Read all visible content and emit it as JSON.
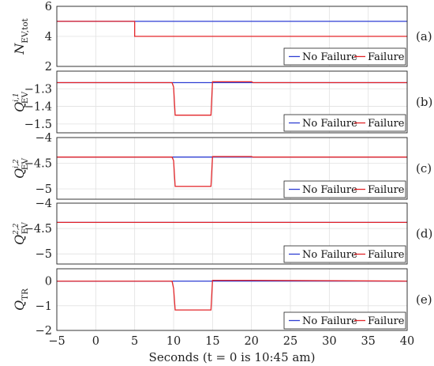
{
  "colors": {
    "no_failure": "#2f3fd3",
    "failure": "#e3262a",
    "grid": "#e1e1e1",
    "axis": "#222222",
    "background": "#ffffff"
  },
  "chart_data": [
    {
      "type": "line",
      "panel_label": "(a)",
      "ylabel": {
        "main": "N",
        "sub": "EV,tot",
        "sup": ""
      },
      "xlim": [
        -5,
        40
      ],
      "ylim": [
        2,
        6
      ],
      "yticks": [
        2,
        4,
        6
      ],
      "ytick_labels": [
        "2",
        "4",
        "6"
      ],
      "grid": true,
      "legend": "bottom-right",
      "series": [
        {
          "name": "No Failure",
          "color": "#2f3fd3",
          "x": [
            -5,
            40
          ],
          "y": [
            5,
            5
          ]
        },
        {
          "name": "Failure",
          "color": "#e3262a",
          "x": [
            -5,
            5,
            5,
            40
          ],
          "y": [
            5,
            5,
            4,
            4
          ]
        }
      ]
    },
    {
      "type": "line",
      "panel_label": "(b)",
      "ylabel": {
        "main": "Q",
        "sub": "EV",
        "sup": "i,1"
      },
      "xlim": [
        -5,
        40
      ],
      "ylim": [
        -1.55,
        -1.2
      ],
      "yticks": [
        -1.3,
        -1.4,
        -1.5
      ],
      "ytick_labels": [
        "−1.3",
        "−1.4",
        "−1.5"
      ],
      "grid": true,
      "legend": "bottom-right",
      "series": [
        {
          "name": "No Failure",
          "color": "#2f3fd3",
          "x": [
            -5,
            40
          ],
          "y": [
            -1.265,
            -1.265
          ]
        },
        {
          "name": "Failure",
          "color": "#e3262a",
          "x": [
            -5,
            9.8,
            10,
            10.2,
            14.8,
            15,
            20,
            20.2,
            40
          ],
          "y": [
            -1.265,
            -1.265,
            -1.29,
            -1.45,
            -1.45,
            -1.26,
            -1.26,
            -1.265,
            -1.265
          ]
        }
      ]
    },
    {
      "type": "line",
      "panel_label": "(c)",
      "ylabel": {
        "main": "Q",
        "sub": "EV",
        "sup": "i,2"
      },
      "xlim": [
        -5,
        40
      ],
      "ylim": [
        -5.2,
        -4
      ],
      "yticks": [
        -4,
        -4.5,
        -5
      ],
      "ytick_labels": [
        "−4",
        "−4.5",
        "−5"
      ],
      "grid": true,
      "legend": "bottom-right",
      "series": [
        {
          "name": "No Failure",
          "color": "#2f3fd3",
          "x": [
            -5,
            40
          ],
          "y": [
            -4.38,
            -4.38
          ]
        },
        {
          "name": "Failure",
          "color": "#e3262a",
          "x": [
            -5,
            9.8,
            10,
            10.2,
            14.8,
            15,
            20,
            20.2,
            40
          ],
          "y": [
            -4.38,
            -4.38,
            -4.45,
            -4.95,
            -4.95,
            -4.37,
            -4.37,
            -4.38,
            -4.38
          ]
        }
      ]
    },
    {
      "type": "line",
      "panel_label": "(d)",
      "ylabel": {
        "main": "Q",
        "sub": "EV",
        "sup": "2,2"
      },
      "xlim": [
        -5,
        40
      ],
      "ylim": [
        -5.2,
        -4
      ],
      "yticks": [
        -4,
        -4.5,
        -5
      ],
      "ytick_labels": [
        "−4",
        "−4.5",
        "−5"
      ],
      "grid": true,
      "legend": "bottom-right",
      "series": [
        {
          "name": "No Failure",
          "color": "#2f3fd3",
          "x": [
            -5,
            40
          ],
          "y": [
            -4.38,
            -4.38
          ]
        },
        {
          "name": "Failure",
          "color": "#e3262a",
          "x": [
            -5,
            40
          ],
          "y": [
            -4.38,
            -4.38
          ]
        }
      ]
    },
    {
      "type": "line",
      "panel_label": "(e)",
      "ylabel": {
        "main": "Q",
        "sub": "TR",
        "sup": ""
      },
      "xlim": [
        -5,
        40
      ],
      "ylim": [
        -2,
        0.5
      ],
      "yticks": [
        0,
        -1,
        -2
      ],
      "ytick_labels": [
        "0",
        "−1",
        "−2"
      ],
      "grid": true,
      "legend": "bottom-right",
      "xticks": [
        -5,
        0,
        5,
        10,
        15,
        20,
        25,
        30,
        35,
        40
      ],
      "xtick_labels": [
        "−5",
        "0",
        "5",
        "10",
        "15",
        "20",
        "25",
        "30",
        "35",
        "40"
      ],
      "xlabel": "Seconds (t  =  0 is 10:45 am)",
      "series": [
        {
          "name": "No Failure",
          "color": "#2f3fd3",
          "x": [
            -5,
            40
          ],
          "y": [
            0,
            0
          ]
        },
        {
          "name": "Failure",
          "color": "#e3262a",
          "x": [
            -5,
            9.8,
            10,
            10.2,
            14.8,
            15,
            20,
            40
          ],
          "y": [
            0,
            0,
            -0.3,
            -1.17,
            -1.17,
            0.03,
            0.03,
            0
          ]
        }
      ]
    }
  ]
}
